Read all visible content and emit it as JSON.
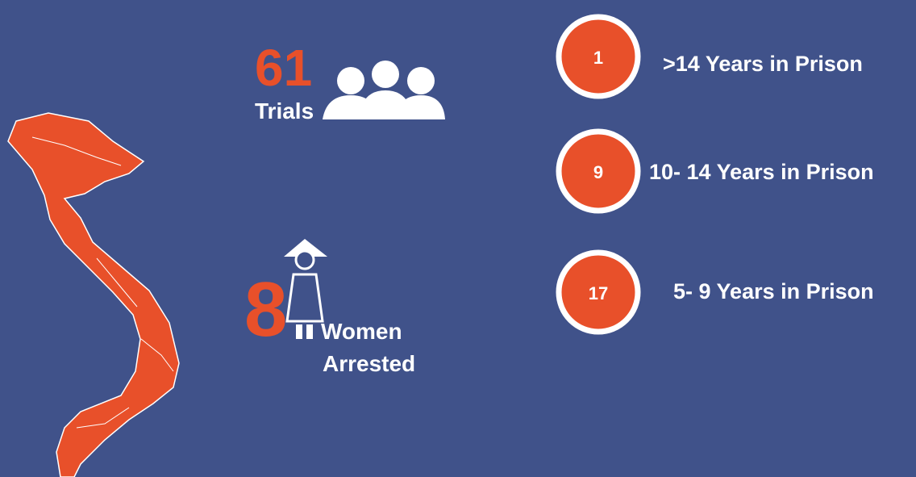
{
  "trials": {
    "number": 61,
    "label": "Trials"
  },
  "women": {
    "number": 8,
    "label_line1": "Women",
    "label_line2": "Arrested"
  },
  "sentences": [
    {
      "count": 1,
      "label": ">14 Years in Prison"
    },
    {
      "count": 9,
      "label": "10- 14 Years in Prison"
    },
    {
      "count": 17,
      "label": "5- 9 Years in Prison"
    }
  ]
}
